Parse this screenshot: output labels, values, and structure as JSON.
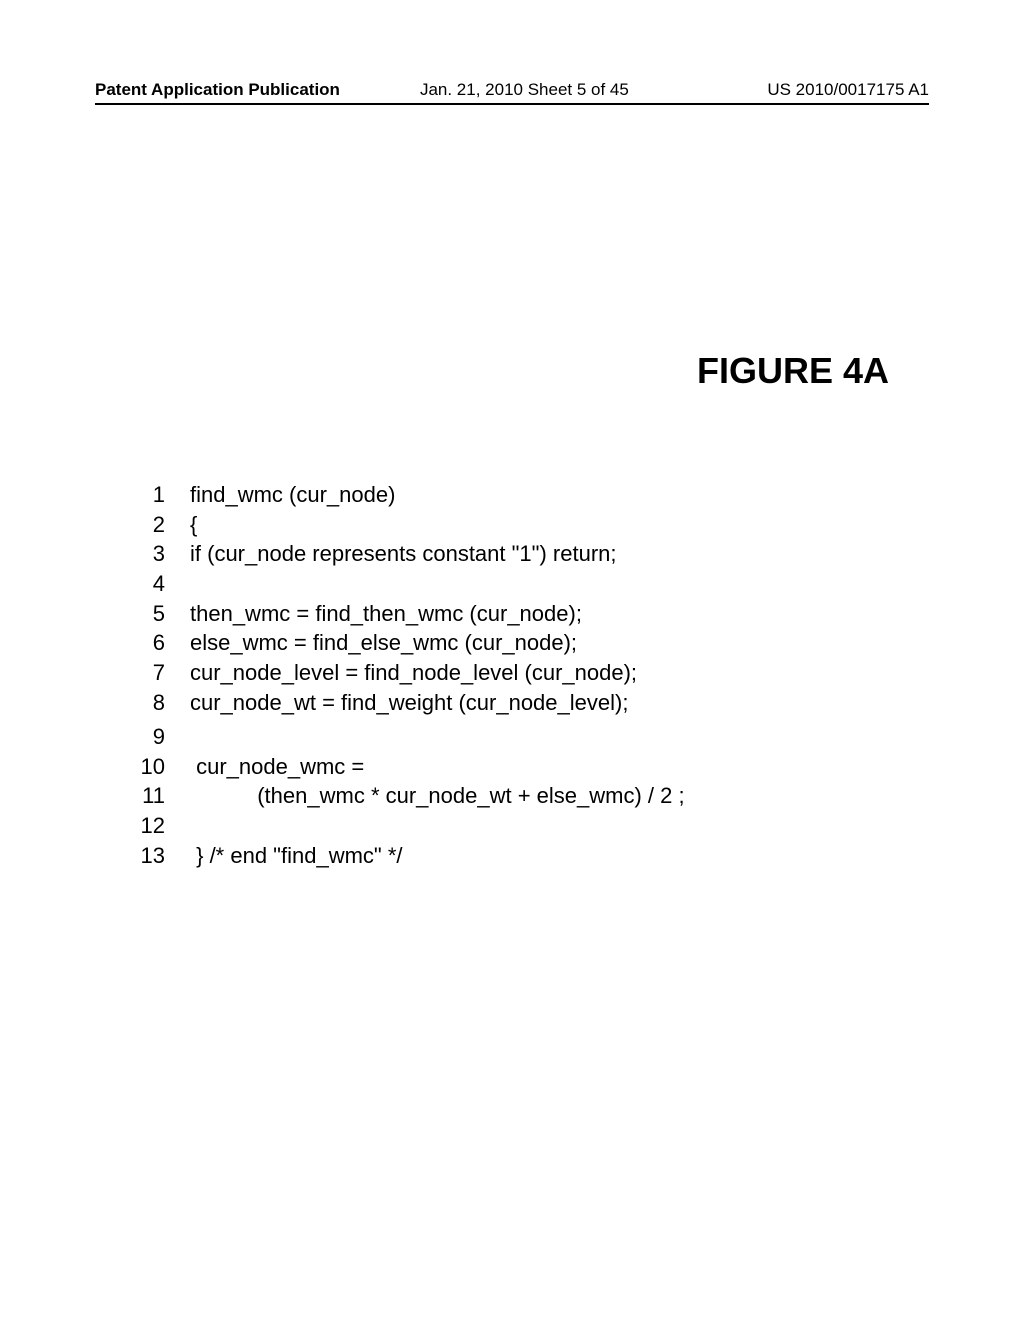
{
  "header": {
    "left": "Patent Application Publication",
    "center": "Jan. 21, 2010  Sheet 5 of 45",
    "right": "US 2010/0017175 A1"
  },
  "figure_title": "FIGURE 4A",
  "code_lines_block1": [
    {
      "num": "1",
      "text": "find_wmc (cur_node)"
    },
    {
      "num": "2",
      "text": "{"
    },
    {
      "num": "3",
      "text": "if (cur_node represents constant \"1\") return;"
    },
    {
      "num": "4",
      "text": ""
    },
    {
      "num": "5",
      "text": "then_wmc = find_then_wmc (cur_node);"
    },
    {
      "num": "6",
      "text": "else_wmc = find_else_wmc (cur_node);"
    },
    {
      "num": "7",
      "text": "cur_node_level = find_node_level (cur_node);"
    },
    {
      "num": "8",
      "text": "cur_node_wt = find_weight (cur_node_level);"
    }
  ],
  "code_lines_block2": [
    {
      "num": "9",
      "text": ""
    },
    {
      "num": "10",
      "text": " cur_node_wmc ="
    },
    {
      "num": "11",
      "text": "           (then_wmc * cur_node_wt + else_wmc) / 2 ;"
    },
    {
      "num": "12",
      "text": ""
    },
    {
      "num": "13",
      "text": " } /* end \"find_wmc\" */"
    }
  ]
}
